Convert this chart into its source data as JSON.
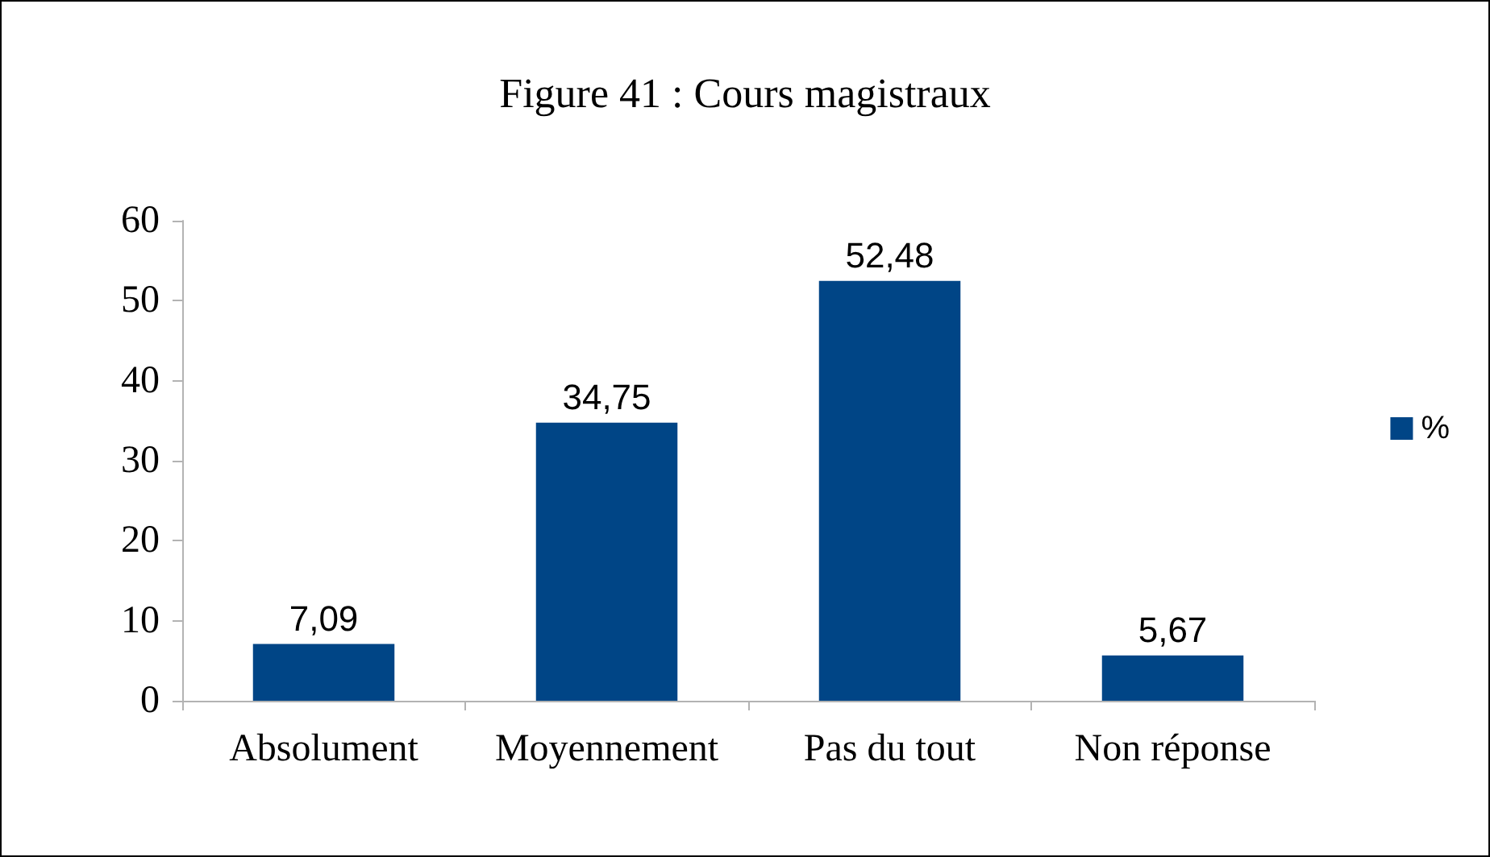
{
  "chart_data": {
    "type": "bar",
    "title": "Figure 41 : Cours magistraux",
    "categories": [
      "Absolument",
      "Moyennement",
      "Pas du tout",
      "Non réponse"
    ],
    "series": [
      {
        "name": "%",
        "color": "#004586",
        "values": [
          7.09,
          34.75,
          52.48,
          5.67
        ],
        "value_labels": [
          "7,09",
          "34,75",
          "52,48",
          "5,67"
        ]
      }
    ],
    "ylim": [
      0,
      60
    ],
    "yticks": [
      0,
      10,
      20,
      30,
      40,
      50,
      60
    ],
    "grid": false,
    "legend": "right"
  }
}
